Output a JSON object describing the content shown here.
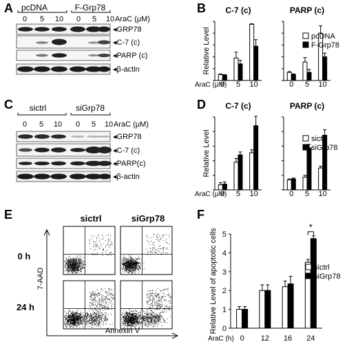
{
  "panels": {
    "A": {
      "letter": "A",
      "groups": [
        "pcDNA",
        "F-Grp78"
      ],
      "doses": [
        "0",
        "5",
        "10",
        "0",
        "5",
        "10"
      ],
      "treatment": "AraC (μM)",
      "bands": [
        "GRP78",
        "C-7 (c)",
        "PARP (c)",
        "β-actin"
      ]
    },
    "C": {
      "letter": "C",
      "groups": [
        "sictrl",
        "siGrp78"
      ],
      "doses": [
        "0",
        "5",
        "10",
        "0",
        "5",
        "10"
      ],
      "treatment": "AraC (μM)",
      "bands": [
        "GRP78",
        "C-7 (c)",
        "PARP(c)",
        "β-actin"
      ]
    },
    "E": {
      "letter": "E",
      "columns": [
        "sictrl",
        "siGrp78"
      ],
      "rows": [
        "0 h",
        "24 h"
      ],
      "ylabel": "7-AAD",
      "xlabel": "Annexin V"
    }
  },
  "chart_data": [
    {
      "panel": "B",
      "type": "bar",
      "title": "C-7 (c)",
      "ylabel": "Relative Level",
      "xlabel": "AraC (μM)",
      "categories": [
        "0",
        "5",
        "10"
      ],
      "ylim": [
        0,
        10
      ],
      "series": [
        {
          "name": "pcDNA",
          "color": "#ffffff",
          "values": [
            1.0,
            3.8,
            9.5
          ],
          "errors": [
            0.1,
            1.0,
            0.1
          ]
        },
        {
          "name": "F-Grp78",
          "color": "#000000",
          "values": [
            0.9,
            2.8,
            5.8
          ],
          "errors": [
            0.1,
            0.6,
            1.1
          ]
        }
      ]
    },
    {
      "panel": "B",
      "type": "bar",
      "title": "PARP (c)",
      "categories": [
        "0",
        "5",
        "10"
      ],
      "ylim": [
        0,
        8
      ],
      "series": [
        {
          "name": "pcDNA",
          "color": "#ffffff",
          "values": [
            1.1,
            2.5,
            6.4
          ],
          "errors": [
            0.1,
            0.6,
            1.0
          ]
        },
        {
          "name": "F-Grp78",
          "color": "#000000",
          "values": [
            0.8,
            1.1,
            3.2
          ],
          "errors": [
            0.1,
            0.4,
            0.5
          ]
        }
      ],
      "legend": "right"
    },
    {
      "panel": "D",
      "type": "bar",
      "title": "C-7 (c)",
      "ylabel": "Relative Level",
      "xlabel": "AraC (μM)",
      "categories": [
        "0",
        "5",
        "10"
      ],
      "ylim": [
        0,
        10
      ],
      "series": [
        {
          "name": "sictrl",
          "color": "#ffffff",
          "values": [
            0.7,
            3.8,
            5.1
          ],
          "errors": [
            0.3,
            0.5,
            0.4
          ]
        },
        {
          "name": "siGrp78",
          "color": "#000000",
          "values": [
            0.8,
            4.8,
            8.8
          ],
          "errors": [
            0.3,
            0.4,
            1.3
          ]
        }
      ]
    },
    {
      "panel": "D",
      "type": "bar",
      "title": "PARP (c)",
      "categories": [
        "0",
        "5",
        "10"
      ],
      "ylim": [
        0,
        8
      ],
      "series": [
        {
          "name": "sictrl",
          "color": "#ffffff",
          "values": [
            1.1,
            1.4,
            2.4
          ],
          "errors": [
            0.1,
            0.2,
            0.2
          ]
        },
        {
          "name": "siGrp78",
          "color": "#000000",
          "values": [
            1.2,
            4.6,
            6.0
          ],
          "errors": [
            0.1,
            0.4,
            0.6
          ]
        }
      ],
      "legend": "right"
    },
    {
      "panel": "F",
      "type": "bar",
      "ylabel": "Relative Level of apoptotic cells",
      "xlabel": "AraC (h)",
      "categories": [
        "0",
        "12",
        "16",
        "24"
      ],
      "ylim": [
        0,
        5
      ],
      "yticks": [
        "0",
        "1",
        "2",
        "3",
        "4",
        "5"
      ],
      "series": [
        {
          "name": "sictrl",
          "color": "#ffffff",
          "values": [
            1.0,
            2.0,
            2.2,
            3.5
          ],
          "errors": [
            0.15,
            0.3,
            0.3,
            0.15
          ]
        },
        {
          "name": "siGrp78",
          "color": "#000000",
          "values": [
            1.0,
            2.0,
            2.35,
            4.75
          ],
          "errors": [
            0.15,
            0.3,
            0.4,
            0.15
          ]
        }
      ],
      "significance": {
        "category": "24",
        "label": "*"
      },
      "legend": "right"
    }
  ],
  "panel_letters": {
    "B": "B",
    "D": "D",
    "F": "F"
  }
}
